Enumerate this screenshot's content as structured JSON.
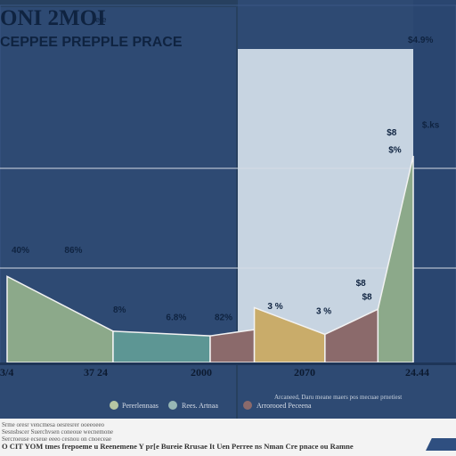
{
  "header": {
    "title_top": "ONI 2MOI",
    "title_top_small": "ete",
    "title_main": "CEPPEE PREPPLE PRACE"
  },
  "chart_data": {
    "type": "area",
    "x_labels": [
      "3/4",
      "37 24",
      "2000",
      "2070",
      "24.44"
    ],
    "segments": [
      {
        "start": 0,
        "end": 1.2,
        "y0": 55,
        "y1": 20,
        "color": "#8ca98a"
      },
      {
        "start": 1.2,
        "end": 2.3,
        "y0": 20,
        "y1": 17,
        "color": "#5d9694"
      },
      {
        "start": 2.3,
        "end": 2.8,
        "y0": 17,
        "y1": 21,
        "color": "#8b6a6b"
      },
      {
        "start": 2.8,
        "end": 3.6,
        "y0": 35,
        "y1": 18,
        "color": "#c9ac6a"
      },
      {
        "start": 3.6,
        "end": 4.2,
        "y0": 18,
        "y1": 34,
        "color": "#8b6a6b"
      },
      {
        "start": 4.2,
        "end": 4.6,
        "y0": 34,
        "y1": 132,
        "color": "#8ca98a"
      }
    ],
    "value_labels": [
      {
        "text": "40%",
        "x": 0.05,
        "y": 70
      },
      {
        "text": "86%",
        "x": 0.65,
        "y": 70
      },
      {
        "text": "8%",
        "x": 1.2,
        "y": 32
      },
      {
        "text": "6.8%",
        "x": 1.8,
        "y": 27
      },
      {
        "text": "82%",
        "x": 2.35,
        "y": 27
      },
      {
        "text": "3 %",
        "x": 2.95,
        "y": 34
      },
      {
        "text": "3 %",
        "x": 3.5,
        "y": 31
      },
      {
        "text": "$8",
        "x": 3.95,
        "y": 49
      },
      {
        "text": "$8",
        "x": 4.02,
        "y": 40
      },
      {
        "text": "$8",
        "x": 4.3,
        "y": 145
      },
      {
        "text": "$%",
        "x": 4.32,
        "y": 134
      },
      {
        "text": "$.ks",
        "x": 4.7,
        "y": 150
      }
    ],
    "top_right_label": "$4.9%",
    "grid": true,
    "legend": [
      "Pererlennaas",
      "Rees. Artnaa",
      "Arrorooed Peceena"
    ]
  },
  "notes": {
    "right_text": "Arcaneed, Daru meane maers pos mecuae prnetiest"
  },
  "footer": {
    "line1": "Srme oresr vencmesa oesresrer ooeeoeeo",
    "line2": "Sesnsbscer Suerchvsen coneoue wecnemone",
    "line3": "Sercroeuse ecseue eeeo cesnou on cnoeceae",
    "text": "O CIT YOM tmes frepoeme u Reenemene Y pr[e Bureie Rrusae It Uen Perree ns Nman Cre pnace ou Ramne"
  },
  "colors": {
    "background": "#2e4a73",
    "panel_right": "#2a4670",
    "highlight": "#c7d4e1",
    "label": "#0f2340"
  }
}
